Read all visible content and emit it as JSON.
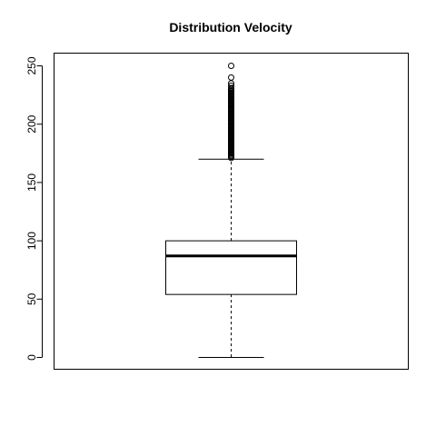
{
  "chart_data": {
    "type": "box",
    "title": "Distribution Velocity",
    "xlabel": "",
    "ylabel": "",
    "ylim": [
      -10,
      255
    ],
    "yticks": [
      0,
      50,
      100,
      150,
      200,
      250
    ],
    "yticklabels": [
      "0",
      "50",
      "100",
      "150",
      "200",
      "250"
    ],
    "box": {
      "lower_whisker": 0,
      "q1": 54,
      "median": 87,
      "q3": 100,
      "upper_whisker": 170
    },
    "outliers": [
      171,
      172,
      173,
      174,
      175,
      176,
      177,
      178,
      179,
      180,
      181,
      182,
      183,
      184,
      185,
      186,
      187,
      188,
      189,
      190,
      191,
      192,
      193,
      194,
      195,
      196,
      197,
      198,
      199,
      200,
      201,
      202,
      203,
      204,
      205,
      206,
      207,
      208,
      209,
      210,
      211,
      212,
      213,
      214,
      215,
      216,
      217,
      218,
      219,
      220,
      221,
      222,
      223,
      224,
      225,
      226,
      227,
      228,
      229,
      230,
      231,
      233,
      235,
      240,
      250
    ]
  }
}
